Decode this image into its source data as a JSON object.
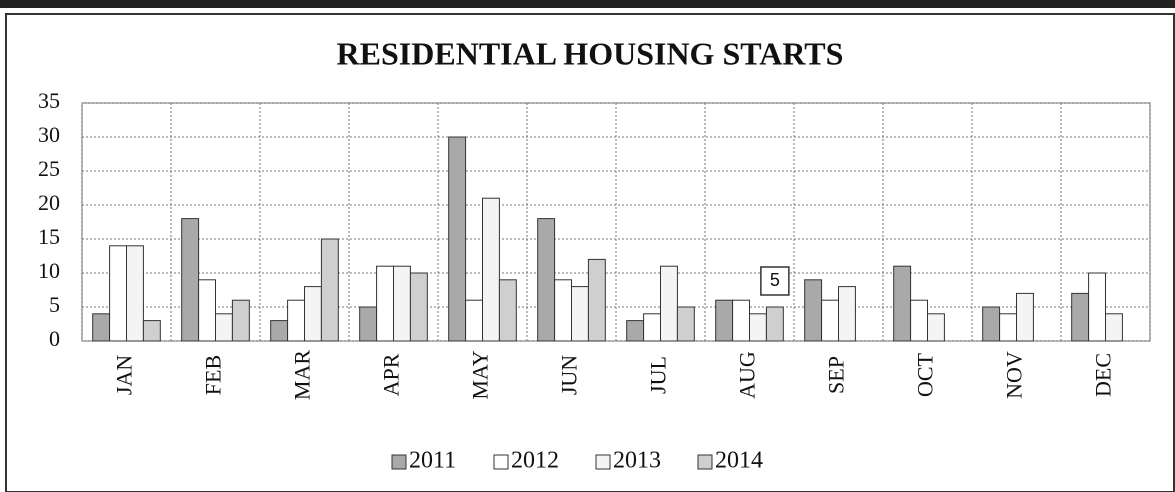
{
  "chart_data": {
    "type": "bar",
    "title": "RESIDENTIAL HOUSING STARTS",
    "categories": [
      "JAN",
      "FEB",
      "MAR",
      "APR",
      "MAY",
      "JUN",
      "JUL",
      "AUG",
      "SEP",
      "OCT",
      "NOV",
      "DEC"
    ],
    "series": [
      {
        "name": "2011",
        "color": "#a9a9a9",
        "values": [
          4,
          18,
          3,
          5,
          30,
          18,
          3,
          6,
          9,
          11,
          5,
          7
        ]
      },
      {
        "name": "2012",
        "color": "#ffffff",
        "values": [
          14,
          9,
          6,
          11,
          6,
          9,
          4,
          6,
          6,
          6,
          4,
          10
        ]
      },
      {
        "name": "2013",
        "color": "#f4f4f4",
        "values": [
          14,
          4,
          8,
          11,
          21,
          8,
          11,
          4,
          8,
          4,
          7,
          4
        ]
      },
      {
        "name": "2014",
        "color": "#cfcfcf",
        "values": [
          3,
          6,
          15,
          10,
          9,
          12,
          5,
          5,
          null,
          null,
          null,
          null
        ],
        "value_labels": [
          null,
          null,
          null,
          null,
          null,
          null,
          null,
          "5",
          null,
          null,
          null,
          null
        ]
      }
    ],
    "ylim": [
      0,
      35
    ],
    "yticks": [
      0,
      5,
      10,
      15,
      20,
      25,
      30,
      35
    ],
    "grid": true,
    "legend": "bottom"
  }
}
